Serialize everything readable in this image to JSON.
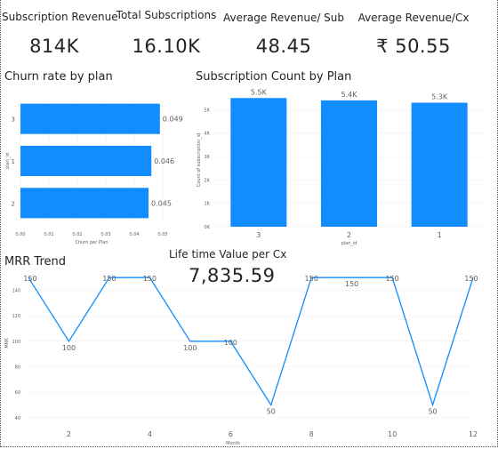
{
  "kpis": [
    {
      "label": "Subscription Revenue",
      "value": "814K"
    },
    {
      "label": "Total Subscriptions",
      "value": "16.10K"
    },
    {
      "label": "Average Revenue/ Sub",
      "value": "48.45"
    },
    {
      "label": "Average Revenue/Cx",
      "value": "₹ 50.55"
    }
  ],
  "ltv": {
    "title": "Life time Value per Cx",
    "value": "7,835.59"
  },
  "colors": {
    "bar": "#118DFF",
    "line": "#118DFF",
    "grid": "#e1e1e1"
  },
  "chart_data": [
    {
      "type": "bar",
      "orientation": "horizontal",
      "title": "Churn rate by plan",
      "categories": [
        "3",
        "1",
        "2"
      ],
      "values": [
        0.049,
        0.046,
        0.045
      ],
      "data_labels": [
        "0.049",
        "0.046",
        "0.045"
      ],
      "xlabel": "Churn per Plan",
      "ylabel": "plan_id",
      "xlim": [
        0,
        0.05
      ],
      "xticks": [
        0,
        0.01,
        0.02,
        0.03,
        0.04,
        0.05
      ],
      "xtick_labels": [
        "0.00",
        "0.01",
        "0.02",
        "0.03",
        "0.04",
        "0.05"
      ],
      "grid": true
    },
    {
      "type": "bar",
      "title": "Subscription Count by Plan",
      "categories": [
        "3",
        "2",
        "1"
      ],
      "values": [
        5500,
        5400,
        5300
      ],
      "data_labels": [
        "5.5K",
        "5.4K",
        "5.3K"
      ],
      "xlabel": "plan_id",
      "ylabel": "Count of subscription_id",
      "ylim": [
        0,
        5700
      ],
      "yticks": [
        0,
        1000,
        2000,
        3000,
        4000,
        5000
      ],
      "ytick_labels": [
        "0K",
        "1K",
        "2K",
        "3K",
        "4K",
        "5K"
      ],
      "grid": true
    },
    {
      "type": "line",
      "title": "MRR Trend",
      "x": [
        1,
        2,
        3,
        4,
        5,
        6,
        7,
        8,
        9,
        10,
        11,
        12
      ],
      "values": [
        150,
        100,
        150,
        150,
        100,
        100,
        50,
        150,
        150,
        150,
        50,
        150
      ],
      "xlabel": "Month",
      "ylabel": "MRR",
      "xlim": [
        1,
        12
      ],
      "ylim": [
        35,
        155
      ],
      "xticks": [
        2,
        4,
        6,
        8,
        10,
        12
      ],
      "yticks": [
        40,
        60,
        80,
        100,
        120,
        140
      ],
      "grid": true
    }
  ]
}
